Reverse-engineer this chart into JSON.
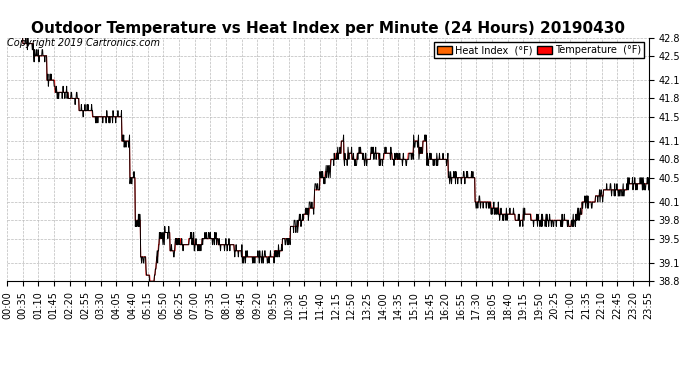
{
  "title": "Outdoor Temperature vs Heat Index per Minute (24 Hours) 20190430",
  "copyright": "Copyright 2019 Cartronics.com",
  "legend_heat": "Heat Index  (°F)",
  "legend_temp": "Temperature  (°F)",
  "ylim": [
    38.8,
    42.8
  ],
  "yticks": [
    38.8,
    39.1,
    39.5,
    39.8,
    40.1,
    40.5,
    40.8,
    41.1,
    41.5,
    41.8,
    42.1,
    42.5,
    42.8
  ],
  "heat_color": "#FF0000",
  "temp_color": "#000000",
  "legend_heat_bg": "#FF6600",
  "legend_temp_bg": "#FF0000",
  "background_color": "#FFFFFF",
  "grid_color": "#BBBBBB",
  "title_fontsize": 11,
  "tick_fontsize": 7,
  "copyright_fontsize": 7,
  "x_tick_labels": [
    "00:00",
    "00:35",
    "01:10",
    "01:45",
    "02:20",
    "02:55",
    "03:30",
    "04:05",
    "04:40",
    "05:15",
    "05:50",
    "06:25",
    "07:00",
    "07:35",
    "08:10",
    "08:45",
    "09:20",
    "09:55",
    "10:30",
    "11:05",
    "11:40",
    "12:15",
    "12:50",
    "13:25",
    "14:00",
    "14:35",
    "15:10",
    "15:45",
    "16:20",
    "16:55",
    "17:30",
    "18:05",
    "18:40",
    "19:15",
    "19:50",
    "20:25",
    "21:00",
    "21:35",
    "22:10",
    "22:45",
    "23:20",
    "23:55"
  ],
  "num_points": 1440
}
